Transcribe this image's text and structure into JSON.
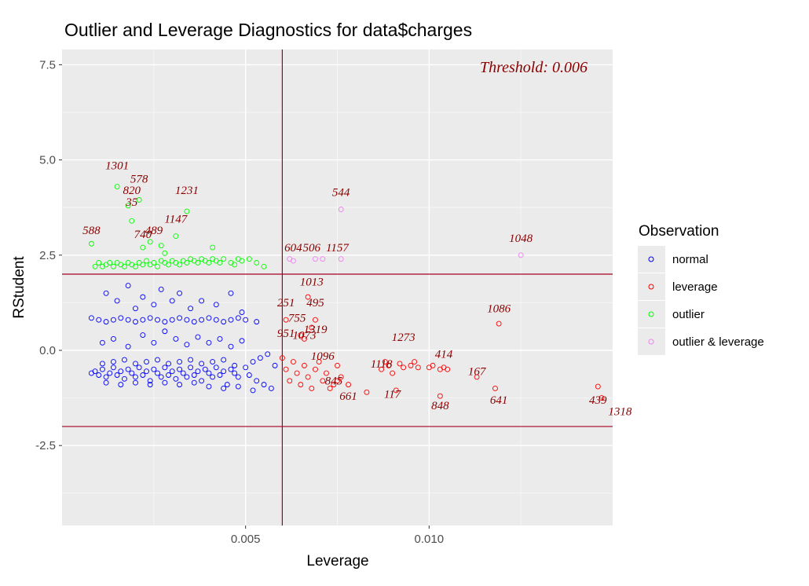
{
  "chart_data": {
    "type": "scatter",
    "title": "Outlier and Leverage Diagnostics for data$charges",
    "xlabel": "Leverage",
    "ylabel": "RStudent",
    "xlim": [
      0.0,
      0.015
    ],
    "ylim": [
      -4.6,
      7.9
    ],
    "x_ticks": [
      0.005,
      0.01
    ],
    "x_tick_labels": [
      "0.005",
      "0.010"
    ],
    "y_ticks": [
      -2.5,
      0.0,
      2.5,
      5.0,
      7.5
    ],
    "y_tick_labels": [
      "-2.5",
      "0.0",
      "2.5",
      "5.0",
      "7.5"
    ],
    "threshold_text": "Threshold: 0.006",
    "reference_lines": {
      "vertical_x": 0.006,
      "horizontal_y": [
        -2,
        2
      ]
    },
    "grid": true,
    "background": "#ebebeb",
    "legend": {
      "title": "Observation",
      "position": "right",
      "entries": [
        {
          "name": "normal",
          "color": "#0000ff"
        },
        {
          "name": "leverage",
          "color": "#ff0000"
        },
        {
          "name": "outlier",
          "color": "#00ff00"
        },
        {
          "name": "outlier & leverage",
          "color": "#ee82ee"
        }
      ]
    },
    "line_color": "#a50021",
    "label_color": "#8b0000",
    "series": [
      {
        "name": "normal",
        "color": "#0000ff",
        "points": [
          [
            0.0008,
            -0.6
          ],
          [
            0.0009,
            -0.55
          ],
          [
            0.001,
            -0.65
          ],
          [
            0.0011,
            -0.5
          ],
          [
            0.0012,
            -0.7
          ],
          [
            0.0013,
            -0.6
          ],
          [
            0.0014,
            -0.45
          ],
          [
            0.0015,
            -0.65
          ],
          [
            0.0016,
            -0.55
          ],
          [
            0.0017,
            -0.75
          ],
          [
            0.0018,
            -0.5
          ],
          [
            0.0019,
            -0.6
          ],
          [
            0.002,
            -0.7
          ],
          [
            0.0021,
            -0.45
          ],
          [
            0.0022,
            -0.65
          ],
          [
            0.0023,
            -0.55
          ],
          [
            0.0024,
            -0.8
          ],
          [
            0.0025,
            -0.5
          ],
          [
            0.0026,
            -0.6
          ],
          [
            0.0027,
            -0.7
          ],
          [
            0.0028,
            -0.45
          ],
          [
            0.0029,
            -0.65
          ],
          [
            0.003,
            -0.55
          ],
          [
            0.0031,
            -0.75
          ],
          [
            0.0032,
            -0.5
          ],
          [
            0.0033,
            -0.6
          ],
          [
            0.0034,
            -0.7
          ],
          [
            0.0035,
            -0.45
          ],
          [
            0.0036,
            -0.65
          ],
          [
            0.0037,
            -0.55
          ],
          [
            0.0038,
            -0.8
          ],
          [
            0.0039,
            -0.5
          ],
          [
            0.004,
            -0.6
          ],
          [
            0.0041,
            -0.7
          ],
          [
            0.0042,
            -0.45
          ],
          [
            0.0043,
            -0.65
          ],
          [
            0.0044,
            -0.55
          ],
          [
            0.0045,
            -0.9
          ],
          [
            0.0046,
            -0.5
          ],
          [
            0.0047,
            -0.6
          ],
          [
            0.0048,
            -0.7
          ],
          [
            0.005,
            -0.45
          ],
          [
            0.0051,
            -0.65
          ],
          [
            0.0052,
            -0.3
          ],
          [
            0.0053,
            -0.8
          ],
          [
            0.0054,
            -0.2
          ],
          [
            0.0055,
            -0.9
          ],
          [
            0.0056,
            -0.1
          ],
          [
            0.0057,
            -1.0
          ],
          [
            0.0058,
            -0.4
          ],
          [
            0.0011,
            -0.35
          ],
          [
            0.0014,
            -0.3
          ],
          [
            0.0017,
            -0.25
          ],
          [
            0.002,
            -0.35
          ],
          [
            0.0023,
            -0.3
          ],
          [
            0.0026,
            -0.25
          ],
          [
            0.0029,
            -0.35
          ],
          [
            0.0032,
            -0.3
          ],
          [
            0.0035,
            -0.25
          ],
          [
            0.0038,
            -0.35
          ],
          [
            0.0041,
            -0.3
          ],
          [
            0.0044,
            -0.25
          ],
          [
            0.0047,
            -0.4
          ],
          [
            0.0012,
            -0.85
          ],
          [
            0.0016,
            -0.9
          ],
          [
            0.002,
            -0.85
          ],
          [
            0.0024,
            -0.9
          ],
          [
            0.0028,
            -0.85
          ],
          [
            0.0032,
            -0.9
          ],
          [
            0.0036,
            -0.85
          ],
          [
            0.004,
            -0.95
          ],
          [
            0.0044,
            -1.0
          ],
          [
            0.0048,
            -0.95
          ],
          [
            0.0052,
            -1.05
          ],
          [
            0.0008,
            0.85
          ],
          [
            0.001,
            0.8
          ],
          [
            0.0012,
            0.75
          ],
          [
            0.0014,
            0.8
          ],
          [
            0.0016,
            0.85
          ],
          [
            0.0018,
            0.8
          ],
          [
            0.002,
            0.75
          ],
          [
            0.0022,
            0.8
          ],
          [
            0.0024,
            0.85
          ],
          [
            0.0026,
            0.8
          ],
          [
            0.0028,
            0.75
          ],
          [
            0.003,
            0.8
          ],
          [
            0.0032,
            0.85
          ],
          [
            0.0034,
            0.8
          ],
          [
            0.0036,
            0.75
          ],
          [
            0.0038,
            0.8
          ],
          [
            0.004,
            0.85
          ],
          [
            0.0042,
            0.8
          ],
          [
            0.0044,
            0.75
          ],
          [
            0.0046,
            0.8
          ],
          [
            0.0048,
            0.85
          ],
          [
            0.005,
            0.8
          ],
          [
            0.0053,
            0.75
          ],
          [
            0.0012,
            1.5
          ],
          [
            0.0015,
            1.3
          ],
          [
            0.0018,
            1.7
          ],
          [
            0.002,
            1.1
          ],
          [
            0.0022,
            1.4
          ],
          [
            0.0025,
            1.2
          ],
          [
            0.0027,
            1.6
          ],
          [
            0.003,
            1.3
          ],
          [
            0.0032,
            1.5
          ],
          [
            0.0035,
            1.1
          ],
          [
            0.0038,
            1.3
          ],
          [
            0.0042,
            1.2
          ],
          [
            0.0046,
            1.5
          ],
          [
            0.0049,
            1.0
          ],
          [
            0.0011,
            0.2
          ],
          [
            0.0014,
            0.3
          ],
          [
            0.0018,
            0.1
          ],
          [
            0.0022,
            0.4
          ],
          [
            0.0025,
            0.2
          ],
          [
            0.0028,
            0.5
          ],
          [
            0.0031,
            0.3
          ],
          [
            0.0034,
            0.15
          ],
          [
            0.0037,
            0.35
          ],
          [
            0.004,
            0.2
          ],
          [
            0.0043,
            0.3
          ],
          [
            0.0046,
            0.1
          ],
          [
            0.0049,
            0.25
          ]
        ],
        "labels": []
      },
      {
        "name": "leverage",
        "color": "#ff0000",
        "points": [
          [
            0.006,
            -0.2
          ],
          [
            0.0061,
            -0.5
          ],
          [
            0.0062,
            -0.8
          ],
          [
            0.0063,
            -0.3
          ],
          [
            0.0064,
            -0.6
          ],
          [
            0.0065,
            -0.9
          ],
          [
            0.0066,
            -0.4
          ],
          [
            0.0067,
            -0.7
          ],
          [
            0.0068,
            -1.0
          ],
          [
            0.0069,
            -0.5
          ],
          [
            0.007,
            -0.3
          ],
          [
            0.0071,
            -0.8
          ],
          [
            0.0072,
            -0.6
          ],
          [
            0.0073,
            -1.0
          ],
          [
            0.0074,
            -0.9
          ],
          [
            0.0075,
            -0.8
          ],
          [
            0.0076,
            -0.7
          ],
          [
            0.0078,
            -0.9
          ],
          [
            0.0083,
            -1.1
          ],
          [
            0.0061,
            0.8
          ],
          [
            0.0065,
            0.4
          ],
          [
            0.0066,
            0.3
          ],
          [
            0.0068,
            0.6
          ],
          [
            0.0067,
            1.4
          ],
          [
            0.0069,
            0.8
          ],
          [
            0.0075,
            -0.4
          ],
          [
            0.0087,
            -0.5
          ],
          [
            0.0088,
            -0.3
          ],
          [
            0.0089,
            -0.4
          ],
          [
            0.009,
            -0.6
          ],
          [
            0.0091,
            -1.05
          ],
          [
            0.0092,
            -0.35
          ],
          [
            0.0093,
            -0.45
          ],
          [
            0.0095,
            -0.4
          ],
          [
            0.0096,
            -0.3
          ],
          [
            0.0097,
            -0.45
          ],
          [
            0.01,
            -0.45
          ],
          [
            0.0101,
            -0.4
          ],
          [
            0.0103,
            -0.5
          ],
          [
            0.0104,
            -0.45
          ],
          [
            0.0105,
            -0.5
          ],
          [
            0.0103,
            -1.2
          ],
          [
            0.0113,
            -0.7
          ],
          [
            0.0118,
            -1.0
          ],
          [
            0.0119,
            0.7
          ],
          [
            0.0146,
            -0.95
          ],
          [
            0.0147,
            -1.25
          ]
        ],
        "labels": [
          {
            "text": "1013",
            "x": 0.0068,
            "y": 1.7
          },
          {
            "text": "251",
            "x": 0.0061,
            "y": 1.15
          },
          {
            "text": "495",
            "x": 0.0069,
            "y": 1.15
          },
          {
            "text": "755",
            "x": 0.0064,
            "y": 0.75
          },
          {
            "text": "1319",
            "x": 0.0069,
            "y": 0.45
          },
          {
            "text": "951",
            "x": 0.0061,
            "y": 0.35
          },
          {
            "text": "1073",
            "x": 0.0066,
            "y": 0.3
          },
          {
            "text": "1096",
            "x": 0.0071,
            "y": -0.25
          },
          {
            "text": "845",
            "x": 0.0074,
            "y": -0.9
          },
          {
            "text": "661",
            "x": 0.0078,
            "y": -1.3
          },
          {
            "text": "1273",
            "x": 0.0093,
            "y": 0.25
          },
          {
            "text": "1118",
            "x": 0.0087,
            "y": -0.45
          },
          {
            "text": "117",
            "x": 0.009,
            "y": -1.25
          },
          {
            "text": "848",
            "x": 0.0103,
            "y": -1.55
          },
          {
            "text": "414",
            "x": 0.0104,
            "y": -0.2
          },
          {
            "text": "167",
            "x": 0.0113,
            "y": -0.65
          },
          {
            "text": "641",
            "x": 0.0119,
            "y": -1.4
          },
          {
            "text": "1086",
            "x": 0.0119,
            "y": 1.0
          },
          {
            "text": "439",
            "x": 0.0146,
            "y": -1.4
          },
          {
            "text": "1318",
            "x": 0.0152,
            "y": -1.7
          }
        ]
      },
      {
        "name": "outlier",
        "color": "#00ff00",
        "points": [
          [
            0.0008,
            2.8
          ],
          [
            0.0009,
            2.2
          ],
          [
            0.001,
            2.3
          ],
          [
            0.0011,
            2.2
          ],
          [
            0.0012,
            2.25
          ],
          [
            0.0013,
            2.3
          ],
          [
            0.0014,
            2.2
          ],
          [
            0.0015,
            2.3
          ],
          [
            0.0016,
            2.25
          ],
          [
            0.0017,
            2.2
          ],
          [
            0.0018,
            2.3
          ],
          [
            0.0019,
            2.25
          ],
          [
            0.002,
            2.2
          ],
          [
            0.0021,
            2.3
          ],
          [
            0.0022,
            2.25
          ],
          [
            0.0023,
            2.35
          ],
          [
            0.0024,
            2.25
          ],
          [
            0.0025,
            2.3
          ],
          [
            0.0026,
            2.2
          ],
          [
            0.0027,
            2.35
          ],
          [
            0.0028,
            2.3
          ],
          [
            0.0029,
            2.25
          ],
          [
            0.003,
            2.35
          ],
          [
            0.0031,
            2.3
          ],
          [
            0.0032,
            2.25
          ],
          [
            0.0033,
            2.35
          ],
          [
            0.0034,
            2.3
          ],
          [
            0.0035,
            2.4
          ],
          [
            0.0036,
            2.35
          ],
          [
            0.0037,
            2.3
          ],
          [
            0.0038,
            2.4
          ],
          [
            0.0039,
            2.35
          ],
          [
            0.004,
            2.3
          ],
          [
            0.0041,
            2.4
          ],
          [
            0.0042,
            2.35
          ],
          [
            0.0043,
            2.3
          ],
          [
            0.0044,
            2.4
          ],
          [
            0.0046,
            2.3
          ],
          [
            0.0047,
            2.25
          ],
          [
            0.0048,
            2.4
          ],
          [
            0.0049,
            2.35
          ],
          [
            0.0051,
            2.4
          ],
          [
            0.0053,
            2.3
          ],
          [
            0.0055,
            2.2
          ],
          [
            0.0015,
            4.3
          ],
          [
            0.0019,
            3.4
          ],
          [
            0.0021,
            3.95
          ],
          [
            0.0018,
            3.8
          ],
          [
            0.0034,
            3.65
          ],
          [
            0.0031,
            3.0
          ],
          [
            0.0024,
            2.85
          ],
          [
            0.0022,
            2.7
          ],
          [
            0.0027,
            2.75
          ],
          [
            0.0041,
            2.7
          ],
          [
            0.0028,
            2.55
          ]
        ],
        "labels": [
          {
            "text": "1301",
            "x": 0.0015,
            "y": 4.75
          },
          {
            "text": "578",
            "x": 0.0021,
            "y": 4.4
          },
          {
            "text": "820",
            "x": 0.0019,
            "y": 4.1
          },
          {
            "text": "35",
            "x": 0.0019,
            "y": 3.8
          },
          {
            "text": "1231",
            "x": 0.0034,
            "y": 4.1
          },
          {
            "text": "1147",
            "x": 0.0031,
            "y": 3.35
          },
          {
            "text": "489",
            "x": 0.0025,
            "y": 3.05
          },
          {
            "text": "740",
            "x": 0.0022,
            "y": 2.95
          },
          {
            "text": "588",
            "x": 0.0008,
            "y": 3.05
          }
        ]
      },
      {
        "name": "outlier & leverage",
        "color": "#ee82ee",
        "points": [
          [
            0.0062,
            2.4
          ],
          [
            0.0063,
            2.35
          ],
          [
            0.0069,
            2.4
          ],
          [
            0.0071,
            2.4
          ],
          [
            0.0076,
            2.4
          ],
          [
            0.0076,
            3.7
          ],
          [
            0.0125,
            2.5
          ]
        ],
        "labels": [
          {
            "text": "544",
            "x": 0.0076,
            "y": 4.05
          },
          {
            "text": "604",
            "x": 0.0063,
            "y": 2.6
          },
          {
            "text": "506",
            "x": 0.0068,
            "y": 2.6
          },
          {
            "text": "1157",
            "x": 0.0075,
            "y": 2.6
          },
          {
            "text": "1048",
            "x": 0.0125,
            "y": 2.85
          }
        ]
      }
    ],
    "dense_label_band": {
      "y": 2.55,
      "x_from": 0.0006,
      "x_to": 0.0058
    }
  }
}
